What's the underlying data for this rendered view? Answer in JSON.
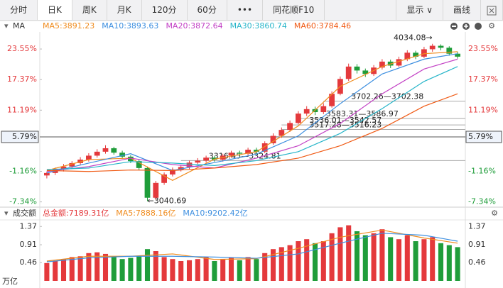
{
  "ui": {
    "tabs": [
      "分时",
      "日K",
      "周K",
      "月K",
      "120分",
      "60分",
      "•••",
      "同花顺F10"
    ],
    "display": "显示 ∨",
    "draw": "画线"
  },
  "chart_data": {
    "type": "candlestick",
    "title": "MA",
    "open": [
      -2.0,
      -1.5,
      -0.8,
      -0.2,
      0.5,
      1.2,
      2.0,
      2.8,
      3.5,
      2.6,
      1.8,
      0.9,
      -0.5,
      -6.5,
      -3.5,
      -1.8,
      -0.8,
      -0.3,
      0.6,
      1.0,
      1.6,
      1.2,
      2.0,
      2.6,
      2.4,
      3.2,
      2.8,
      4.5,
      6.0,
      7.2,
      8.6,
      10.5,
      11.4,
      10.8,
      12.0,
      14.5,
      17.5,
      20.0,
      19.2,
      18.5,
      19.8,
      21.0,
      20.2,
      21.5,
      22.8,
      22.0,
      23.5,
      24.2,
      23.8,
      22.6
    ],
    "high": [
      -1.2,
      -0.4,
      0.3,
      0.9,
      1.7,
      2.5,
      3.3,
      4.1,
      3.8,
      3.0,
      2.1,
      1.2,
      -0.2,
      -3.1,
      -1.4,
      -0.4,
      0.1,
      1.0,
      1.5,
      2.0,
      2.0,
      2.4,
      3.0,
      3.0,
      3.6,
      3.6,
      4.9,
      6.5,
      7.7,
      9.1,
      11.0,
      12.0,
      11.9,
      12.6,
      15.0,
      18.0,
      20.6,
      20.5,
      19.6,
      20.3,
      21.5,
      21.4,
      22.0,
      23.3,
      23.2,
      24.0,
      24.6,
      24.5,
      24.1,
      23.0
    ],
    "low": [
      -2.6,
      -1.9,
      -1.2,
      -0.6,
      0.1,
      0.8,
      1.6,
      2.4,
      2.2,
      1.4,
      0.5,
      -0.9,
      -7.2,
      -6.9,
      -3.9,
      -2.2,
      -1.2,
      -0.7,
      0.2,
      0.6,
      0.8,
      0.8,
      1.6,
      1.9,
      2.0,
      2.4,
      2.5,
      4.2,
      5.6,
      6.8,
      8.3,
      10.0,
      10.2,
      10.4,
      11.7,
      14.2,
      17.1,
      18.6,
      17.9,
      18.1,
      19.4,
      19.7,
      19.9,
      21.1,
      21.5,
      21.7,
      23.0,
      23.3,
      22.2,
      21.6
    ],
    "close": [
      -1.5,
      -0.8,
      -0.2,
      0.5,
      1.2,
      2.0,
      2.8,
      3.5,
      2.6,
      1.8,
      0.9,
      -0.5,
      -6.5,
      -3.5,
      -1.8,
      -0.8,
      -0.3,
      0.6,
      1.0,
      1.6,
      1.2,
      2.0,
      2.6,
      2.4,
      3.2,
      2.8,
      4.5,
      6.0,
      7.2,
      8.6,
      10.5,
      11.4,
      10.8,
      12.0,
      14.5,
      17.5,
      20.0,
      19.2,
      18.5,
      19.8,
      21.0,
      20.2,
      21.5,
      22.8,
      22.0,
      23.5,
      24.2,
      23.8,
      22.6,
      22.0
    ],
    "up_color": "#e4393c",
    "down_color": "#1f9d3a",
    "ylim": [
      -8.4,
      27.0
    ],
    "yticks": [
      {
        "value": 23.55,
        "label": "23.55%"
      },
      {
        "value": 17.37,
        "label": "17.37%"
      },
      {
        "value": 11.19,
        "label": "11.19%"
      },
      {
        "value": -1.16,
        "label": "-1.16%"
      },
      {
        "value": -7.34,
        "label": "-7.34%"
      }
    ],
    "crosshair": {
      "value": 5.79,
      "label": "5.79%"
    },
    "ma_x": [
      0,
      5,
      10,
      15,
      20,
      25,
      30,
      35,
      40,
      45,
      49
    ],
    "ma": [
      {
        "name": "MA5:3891.23",
        "color": "#f08c1e",
        "values": [
          -1.0,
          1.2,
          1.5,
          -3.0,
          1.3,
          2.8,
          8.0,
          16.0,
          20.0,
          22.6,
          23.0
        ]
      },
      {
        "name": "MA10:3893.63",
        "color": "#3d8fe0",
        "values": [
          -1.5,
          0.5,
          2.4,
          -1.0,
          0.6,
          2.3,
          6.0,
          12.5,
          18.5,
          21.5,
          22.6
        ]
      },
      {
        "name": "MA20:3872.64",
        "color": "#c23fc4",
        "values": [
          -1.2,
          -0.2,
          1.5,
          0.2,
          -0.5,
          1.5,
          4.0,
          8.5,
          14.5,
          19.5,
          21.5
        ]
      },
      {
        "name": "MA30:3860.74",
        "color": "#27b5c9",
        "values": [
          -0.8,
          -0.5,
          0.8,
          0.5,
          0.0,
          1.0,
          2.8,
          6.5,
          11.5,
          17.0,
          20.0
        ]
      },
      {
        "name": "MA60:3784.46",
        "color": "#f05a14",
        "values": [
          -1.0,
          -1.2,
          -0.9,
          -1.0,
          -0.5,
          0.2,
          1.5,
          4.0,
          7.5,
          12.0,
          14.5
        ]
      }
    ],
    "annotations": [
      {
        "label": "4034.08→",
        "at": 46,
        "side": "left",
        "level": 24.6
      },
      {
        "label": "←3040.69",
        "at": 12,
        "side": "right",
        "level": -7.2
      },
      {
        "label": "3316.45—3324.81",
        "at": 16,
        "side": "gap",
        "level": 1.0
      },
      {
        "label": "3702.26—3702.38",
        "at": 33,
        "side": "gap",
        "level": 13.0
      },
      {
        "label": "3583.31—3586.97",
        "at": 30,
        "side": "gap",
        "level": 9.5
      },
      {
        "label": "3536.01—3542.57",
        "at": 28,
        "side": "gap",
        "level": 8.2
      },
      {
        "label": "3517.28—3516.23",
        "at": 28,
        "side": "gap",
        "level": 7.3
      }
    ],
    "volume": {
      "title": "成交额",
      "total": "总金额:7189.31亿",
      "unit": "万亿",
      "values": [
        0.45,
        0.5,
        0.55,
        0.6,
        0.62,
        0.7,
        0.72,
        0.68,
        0.6,
        0.55,
        0.58,
        0.62,
        0.8,
        0.75,
        0.6,
        0.55,
        0.5,
        0.52,
        0.55,
        0.6,
        0.5,
        0.55,
        0.58,
        0.52,
        0.6,
        0.55,
        0.7,
        0.8,
        0.85,
        0.9,
        1.0,
        1.05,
        0.95,
        1.0,
        1.2,
        1.35,
        1.4,
        1.25,
        1.15,
        1.2,
        1.3,
        1.1,
        1.05,
        1.15,
        1.0,
        1.05,
        1.1,
        0.95,
        0.9,
        0.85
      ],
      "ylim": [
        0,
        1.5
      ],
      "yticks": [
        1.37,
        0.91,
        0.46
      ],
      "ma": [
        {
          "name": "MA5:7888.16亿",
          "color": "#f08c1e",
          "values": [
            0.5,
            0.62,
            0.62,
            0.68,
            0.54,
            0.56,
            0.82,
            1.1,
            1.28,
            1.08,
            0.95
          ]
        },
        {
          "name": "MA10:9202.42亿",
          "color": "#3d8fe0",
          "values": [
            0.48,
            0.58,
            0.62,
            0.62,
            0.6,
            0.57,
            0.68,
            0.95,
            1.2,
            1.15,
            1.0
          ]
        }
      ]
    }
  }
}
